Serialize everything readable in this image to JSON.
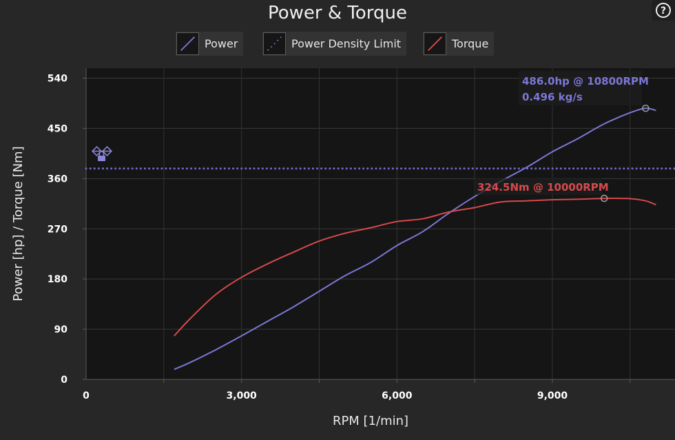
{
  "title": "Power & Torque",
  "help": "?",
  "colors": {
    "power": "#7b78d6",
    "torque": "#d64a4c",
    "limit": "#6f6cc8",
    "background": "#272727",
    "plot_background": "#151515"
  },
  "legend": [
    {
      "label": "Power",
      "icon": "power-line-swatch"
    },
    {
      "label": "Power Density Limit",
      "icon": "dotted-line-swatch"
    },
    {
      "label": "Torque",
      "icon": "torque-line-swatch"
    }
  ],
  "limit_icon": "pistons-lock-icon",
  "chart_data": {
    "type": "line",
    "title": "Power & Torque",
    "xlabel": "RPM [1/min]",
    "ylabel": "Power [hp] / Torque [Nm]",
    "xlim": [
      0,
      11000
    ],
    "ylim": [
      0,
      540
    ],
    "x_ticks": [
      0,
      3000,
      6000,
      9000
    ],
    "x_tick_labels": [
      "0",
      "3,000",
      "6,000",
      "9,000"
    ],
    "y_ticks": [
      0,
      90,
      180,
      270,
      360,
      450,
      540
    ],
    "y_tick_labels": [
      "0",
      "90",
      "180",
      "270",
      "360",
      "450",
      "540"
    ],
    "grid": true,
    "legend_position": "top-center",
    "series": [
      {
        "name": "Power",
        "x": [
          1700,
          2000,
          2500,
          3000,
          3500,
          4000,
          4500,
          5000,
          5500,
          6000,
          6500,
          7000,
          7500,
          8000,
          8500,
          9000,
          9500,
          10000,
          10500,
          10800,
          11000
        ],
        "y": [
          18,
          30,
          53,
          78,
          104,
          130,
          158,
          186,
          210,
          240,
          265,
          298,
          328,
          355,
          380,
          408,
          432,
          458,
          478,
          486,
          482
        ]
      },
      {
        "name": "Torque",
        "x": [
          1700,
          2000,
          2500,
          3000,
          3500,
          4000,
          4500,
          5000,
          5500,
          6000,
          6500,
          7000,
          7500,
          8000,
          8500,
          9000,
          9500,
          10000,
          10500,
          10800,
          11000
        ],
        "y": [
          78,
          108,
          152,
          183,
          207,
          228,
          248,
          262,
          272,
          283,
          288,
          300,
          308,
          318,
          320,
          322,
          323,
          324.5,
          324,
          320,
          313
        ]
      },
      {
        "name": "Power Density Limit",
        "x": [
          0,
          11000
        ],
        "y": [
          378,
          378
        ]
      }
    ],
    "annotations": [
      {
        "text": "486.0hp @ 10800RPM",
        "series": "Power",
        "x": 10800,
        "y": 486
      },
      {
        "text": "0.496 kg/s",
        "series": "Power"
      },
      {
        "text": "324.5Nm @ 10000RPM",
        "series": "Torque",
        "x": 10000,
        "y": 324.5
      }
    ]
  }
}
